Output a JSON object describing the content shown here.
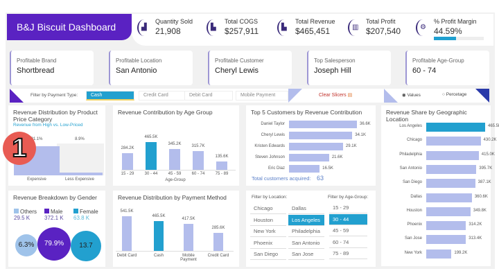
{
  "header": {
    "title": "B&J Biscuit Dashboard"
  },
  "kpis": [
    {
      "label": "Quantity Sold",
      "value": "21,908",
      "icon": "bar-chart-up-icon"
    },
    {
      "label": "Total COGS",
      "value": "$257,911",
      "icon": "bar-chart-down-icon"
    },
    {
      "label": "Total Revenue",
      "value": "$465,451",
      "icon": "bar-chart-down-icon"
    },
    {
      "label": "Total Profit",
      "value": "$207,540",
      "icon": "money-chart-icon"
    },
    {
      "label": "% Profit Margin",
      "value": "44.59%",
      "icon": "profit-gear-icon",
      "progress": 0.4459
    }
  ],
  "cards": [
    {
      "label": "Profitable Brand",
      "value": "Shortbread"
    },
    {
      "label": "Profitable Location",
      "value": "San Antonio"
    },
    {
      "label": "Profitable Customer",
      "value": "Cheryl Lewis"
    },
    {
      "label": "Top Salesperson",
      "value": "Joseph Hill"
    },
    {
      "label": "Profitable Age-Group",
      "value": "60 - 74"
    }
  ],
  "filter": {
    "label": "Filter by Payment Type:",
    "options": [
      "Cash",
      "Credit Card",
      "Debit Card",
      "Mobile Payment"
    ],
    "selected": "Cash",
    "clear": "Clear Slicers",
    "radio": [
      "Values",
      "Percetage"
    ],
    "radio_selected": "Values"
  },
  "price_chart": {
    "title": "Revenue Distribution by Product Price Category",
    "subtitle": "Revenue from High vs. Low-Priced",
    "categories": [
      "Expensive",
      "Less Expensive"
    ],
    "values": [
      91.1,
      8.9
    ],
    "labels": [
      "91.1%",
      "8.9%"
    ]
  },
  "badge": "1",
  "age_chart": {
    "title": "Revenue Contribution by Age Group",
    "xlabel": "Age-Group",
    "categories": [
      "15 - 29",
      "30 - 44",
      "45 - 59",
      "60 - 74",
      "75 - 89"
    ],
    "values": [
      284.2,
      465.5,
      345.2,
      315.7,
      135.6
    ],
    "labels": [
      "284.2K",
      "465.5K",
      "345.2K",
      "315.7K",
      "135.6K"
    ],
    "selected": 1
  },
  "customers_chart": {
    "title": "Top 5 Customers by Revenue Contribution",
    "categories": [
      "Daniel Taylor",
      "Cheryl Lewis",
      "Kristen Edwards",
      "Steven Johnson",
      "Eric Diaz"
    ],
    "values": [
      36.6,
      34.1,
      29.1,
      21.6,
      16.5
    ],
    "labels": [
      "36.6K",
      "34.1K",
      "29.1K",
      "21.6K",
      "16.5K"
    ],
    "total_label": "Total customers acquired:",
    "total_value": "63"
  },
  "geo_chart": {
    "title": "Revenue Share by Geographic Location",
    "categories": [
      "Los Angeles",
      "Chicago",
      "Philadelphia",
      "San Antonio",
      "San Diego",
      "Dallas",
      "Houston",
      "Phoenix",
      "San Jose",
      "New York"
    ],
    "values": [
      465.5,
      430.2,
      415.0,
      395.7,
      387.1,
      360.6,
      349.8,
      314.2,
      313.4,
      199.2
    ],
    "labels": [
      "465.5K",
      "430.2K",
      "415.0K",
      "395.7K",
      "387.1K",
      "360.6K",
      "349.8K",
      "314.2K",
      "313.4K",
      "199.2K"
    ],
    "selected": 0
  },
  "gender": {
    "title": "Revenue Breakdown by Gender",
    "items": [
      {
        "name": "Others",
        "value": "29.5 K",
        "pct": "6.3%",
        "color": "#9fc3ea"
      },
      {
        "name": "Male",
        "value": "372.1 K",
        "pct": "79.9%",
        "color": "#5a22c2"
      },
      {
        "name": "Female",
        "value": "63.8 K",
        "pct": "13.7",
        "color": "#22a0cf"
      }
    ]
  },
  "payment_chart": {
    "title": "Revenue Distribution by Payment Method",
    "categories": [
      "Debit Card",
      "Cash",
      "Mobile Payment",
      "Credit Card"
    ],
    "values": [
      541.5,
      465.5,
      417.5,
      285.6
    ],
    "labels": [
      "541.5K",
      "465.5K",
      "417.5K",
      "285.6K"
    ],
    "selected": 1
  },
  "slicers": {
    "location_label": "Filter by Location:",
    "locations": [
      "Chicago",
      "Dallas",
      "Houston",
      "Los Angeles",
      "New York",
      "Philadelphia",
      "Phoenix",
      "San Antonio",
      "San Diego",
      "San Jose"
    ],
    "location_selected": "Los Angeles",
    "age_label": "Filter by Age-Group:",
    "ages": [
      "15 - 29",
      "30 - 44",
      "45 - 59",
      "60 - 74",
      "75 - 89"
    ],
    "age_selected": "30 - 44"
  }
}
